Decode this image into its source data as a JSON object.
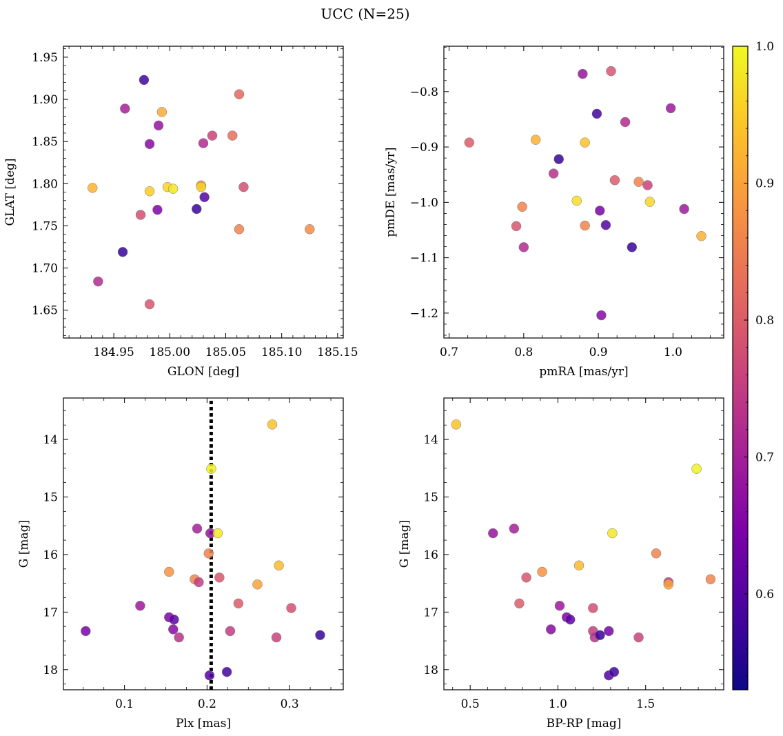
{
  "title": "UCC (N=25)",
  "colorbar": {
    "range": [
      0.53,
      1.0
    ],
    "ticks": [
      0.6,
      0.7,
      0.8,
      0.9,
      1.0
    ],
    "tick_labels": [
      "0.6",
      "0.7",
      "0.8",
      "0.9",
      "1.0"
    ],
    "colormap": "plasma"
  },
  "chart_data": [
    {
      "type": "scatter",
      "id": "glon-glat",
      "xlabel": "GLON [deg]",
      "ylabel": "GLAT [deg]",
      "xlim": [
        184.905,
        185.155
      ],
      "ylim": [
        1.617,
        1.963
      ],
      "xticks": [
        184.95,
        185.0,
        185.05,
        185.1,
        185.15
      ],
      "xtick_labels": [
        "184.95",
        "185.00",
        "185.05",
        "185.10",
        "185.15"
      ],
      "yticks": [
        1.65,
        1.7,
        1.75,
        1.8,
        1.85,
        1.9,
        1.95
      ],
      "ytick_labels": [
        "1.65",
        "1.70",
        "1.75",
        "1.80",
        "1.85",
        "1.90",
        "1.95"
      ],
      "points": [
        {
          "x": 184.977,
          "y": 1.923,
          "c": 0.58
        },
        {
          "x": 184.96,
          "y": 1.889,
          "c": 0.7
        },
        {
          "x": 184.993,
          "y": 1.885,
          "c": 0.91
        },
        {
          "x": 184.99,
          "y": 1.869,
          "c": 0.68
        },
        {
          "x": 184.982,
          "y": 1.847,
          "c": 0.66
        },
        {
          "x": 185.03,
          "y": 1.848,
          "c": 0.72
        },
        {
          "x": 185.038,
          "y": 1.857,
          "c": 0.76
        },
        {
          "x": 185.062,
          "y": 1.906,
          "c": 0.82
        },
        {
          "x": 185.056,
          "y": 1.857,
          "c": 0.83
        },
        {
          "x": 184.931,
          "y": 1.795,
          "c": 0.92
        },
        {
          "x": 184.982,
          "y": 1.791,
          "c": 0.95
        },
        {
          "x": 184.998,
          "y": 1.796,
          "c": 0.96
        },
        {
          "x": 185.003,
          "y": 1.794,
          "c": 0.98
        },
        {
          "x": 185.028,
          "y": 1.798,
          "c": 0.88
        },
        {
          "x": 185.028,
          "y": 1.796,
          "c": 0.96
        },
        {
          "x": 185.066,
          "y": 1.796,
          "c": 0.78
        },
        {
          "x": 184.974,
          "y": 1.763,
          "c": 0.78
        },
        {
          "x": 184.989,
          "y": 1.769,
          "c": 0.65
        },
        {
          "x": 185.024,
          "y": 1.77,
          "c": 0.57
        },
        {
          "x": 185.031,
          "y": 1.784,
          "c": 0.6
        },
        {
          "x": 185.062,
          "y": 1.746,
          "c": 0.86
        },
        {
          "x": 185.125,
          "y": 1.746,
          "c": 0.87
        },
        {
          "x": 184.958,
          "y": 1.719,
          "c": 0.57
        },
        {
          "x": 184.936,
          "y": 1.684,
          "c": 0.72
        },
        {
          "x": 184.982,
          "y": 1.657,
          "c": 0.79
        }
      ]
    },
    {
      "type": "scatter",
      "id": "pmra-pmde",
      "xlabel": "pmRA [mas/yr]",
      "ylabel": "pmDE [mas/yr]",
      "xlim": [
        0.693,
        1.068
      ],
      "ylim": [
        -1.245,
        -0.718
      ],
      "xticks": [
        0.7,
        0.8,
        0.9,
        1.0
      ],
      "xtick_labels": [
        "0.7",
        "0.8",
        "0.9",
        "1.0"
      ],
      "yticks": [
        -1.2,
        -1.1,
        -1.0,
        -0.9,
        -0.8
      ],
      "ytick_labels": [
        "−1.2",
        "−1.1",
        "−1.0",
        "−0.9",
        "−0.8"
      ],
      "points": [
        {
          "x": 0.879,
          "y": -0.768,
          "c": 0.68
        },
        {
          "x": 0.917,
          "y": -0.763,
          "c": 0.79
        },
        {
          "x": 0.898,
          "y": -0.84,
          "c": 0.58
        },
        {
          "x": 0.997,
          "y": -0.83,
          "c": 0.69
        },
        {
          "x": 0.936,
          "y": -0.855,
          "c": 0.72
        },
        {
          "x": 0.727,
          "y": -0.892,
          "c": 0.8
        },
        {
          "x": 0.816,
          "y": -0.887,
          "c": 0.92
        },
        {
          "x": 0.882,
          "y": -0.892,
          "c": 0.94
        },
        {
          "x": 0.847,
          "y": -0.922,
          "c": 0.57
        },
        {
          "x": 0.84,
          "y": -0.948,
          "c": 0.73
        },
        {
          "x": 0.922,
          "y": -0.96,
          "c": 0.8
        },
        {
          "x": 0.954,
          "y": -0.963,
          "c": 0.86
        },
        {
          "x": 0.966,
          "y": -0.969,
          "c": 0.76
        },
        {
          "x": 0.871,
          "y": -0.997,
          "c": 0.97
        },
        {
          "x": 0.969,
          "y": -0.999,
          "c": 0.96
        },
        {
          "x": 0.798,
          "y": -1.008,
          "c": 0.86
        },
        {
          "x": 0.902,
          "y": -1.015,
          "c": 0.64
        },
        {
          "x": 1.015,
          "y": -1.012,
          "c": 0.69
        },
        {
          "x": 0.79,
          "y": -1.043,
          "c": 0.79
        },
        {
          "x": 0.882,
          "y": -1.042,
          "c": 0.86
        },
        {
          "x": 0.91,
          "y": -1.041,
          "c": 0.6
        },
        {
          "x": 0.8,
          "y": -1.081,
          "c": 0.72
        },
        {
          "x": 0.945,
          "y": -1.081,
          "c": 0.57
        },
        {
          "x": 1.038,
          "y": -1.061,
          "c": 0.92
        },
        {
          "x": 0.904,
          "y": -1.204,
          "c": 0.66
        }
      ]
    },
    {
      "type": "scatter",
      "id": "plx-g",
      "xlabel": "Plx [mas]",
      "ylabel": "G [mag]",
      "xlim": [
        0.026,
        0.365
      ],
      "ylim": [
        18.35,
        13.28
      ],
      "y_inverted": true,
      "vline": 0.205,
      "xticks": [
        0.1,
        0.2,
        0.3
      ],
      "xtick_labels": [
        "0.1",
        "0.2",
        "0.3"
      ],
      "yticks": [
        14,
        15,
        16,
        17,
        18
      ],
      "ytick_labels": [
        "14",
        "15",
        "16",
        "17",
        "18"
      ],
      "points": [
        {
          "x": 0.279,
          "y": 13.74,
          "c": 0.94
        },
        {
          "x": 0.205,
          "y": 14.51,
          "c": 0.99
        },
        {
          "x": 0.188,
          "y": 15.55,
          "c": 0.7
        },
        {
          "x": 0.204,
          "y": 15.63,
          "c": 0.68
        },
        {
          "x": 0.213,
          "y": 15.63,
          "c": 0.98
        },
        {
          "x": 0.202,
          "y": 15.98,
          "c": 0.86
        },
        {
          "x": 0.287,
          "y": 16.19,
          "c": 0.93
        },
        {
          "x": 0.154,
          "y": 16.3,
          "c": 0.88
        },
        {
          "x": 0.185,
          "y": 16.43,
          "c": 0.86
        },
        {
          "x": 0.19,
          "y": 16.48,
          "c": 0.75
        },
        {
          "x": 0.215,
          "y": 16.4,
          "c": 0.79
        },
        {
          "x": 0.261,
          "y": 16.52,
          "c": 0.9
        },
        {
          "x": 0.119,
          "y": 16.89,
          "c": 0.69
        },
        {
          "x": 0.238,
          "y": 16.85,
          "c": 0.8
        },
        {
          "x": 0.302,
          "y": 16.93,
          "c": 0.78
        },
        {
          "x": 0.154,
          "y": 17.09,
          "c": 0.65
        },
        {
          "x": 0.16,
          "y": 17.13,
          "c": 0.61
        },
        {
          "x": 0.159,
          "y": 17.3,
          "c": 0.66
        },
        {
          "x": 0.053,
          "y": 17.33,
          "c": 0.64
        },
        {
          "x": 0.228,
          "y": 17.33,
          "c": 0.75
        },
        {
          "x": 0.166,
          "y": 17.44,
          "c": 0.73
        },
        {
          "x": 0.284,
          "y": 17.44,
          "c": 0.76
        },
        {
          "x": 0.337,
          "y": 17.4,
          "c": 0.57
        },
        {
          "x": 0.203,
          "y": 18.1,
          "c": 0.6
        },
        {
          "x": 0.224,
          "y": 18.04,
          "c": 0.58
        }
      ]
    },
    {
      "type": "scatter",
      "id": "bprp-g",
      "xlabel": "BP-RP [mag]",
      "ylabel": "G [mag]",
      "xlim": [
        0.35,
        1.945
      ],
      "ylim": [
        18.35,
        13.28
      ],
      "y_inverted": true,
      "xticks": [
        0.5,
        1.0,
        1.5
      ],
      "xtick_labels": [
        "0.5",
        "1.0",
        "1.5"
      ],
      "yticks": [
        14,
        15,
        16,
        17,
        18
      ],
      "ytick_labels": [
        "14",
        "15",
        "16",
        "17",
        "18"
      ],
      "points": [
        {
          "x": 0.42,
          "y": 13.74,
          "c": 0.94
        },
        {
          "x": 1.79,
          "y": 14.51,
          "c": 0.99
        },
        {
          "x": 0.63,
          "y": 15.63,
          "c": 0.68
        },
        {
          "x": 0.75,
          "y": 15.55,
          "c": 0.7
        },
        {
          "x": 1.31,
          "y": 15.63,
          "c": 0.98
        },
        {
          "x": 1.56,
          "y": 15.98,
          "c": 0.86
        },
        {
          "x": 1.12,
          "y": 16.19,
          "c": 0.93
        },
        {
          "x": 0.91,
          "y": 16.3,
          "c": 0.88
        },
        {
          "x": 0.82,
          "y": 16.4,
          "c": 0.79
        },
        {
          "x": 1.63,
          "y": 16.48,
          "c": 0.75
        },
        {
          "x": 1.63,
          "y": 16.52,
          "c": 0.9
        },
        {
          "x": 1.87,
          "y": 16.43,
          "c": 0.86
        },
        {
          "x": 0.78,
          "y": 16.85,
          "c": 0.8
        },
        {
          "x": 1.01,
          "y": 16.89,
          "c": 0.69
        },
        {
          "x": 1.2,
          "y": 16.93,
          "c": 0.78
        },
        {
          "x": 1.05,
          "y": 17.09,
          "c": 0.65
        },
        {
          "x": 1.07,
          "y": 17.13,
          "c": 0.61
        },
        {
          "x": 0.96,
          "y": 17.3,
          "c": 0.66
        },
        {
          "x": 1.2,
          "y": 17.33,
          "c": 0.75
        },
        {
          "x": 1.21,
          "y": 17.44,
          "c": 0.73
        },
        {
          "x": 1.24,
          "y": 17.4,
          "c": 0.57
        },
        {
          "x": 1.29,
          "y": 17.33,
          "c": 0.64
        },
        {
          "x": 1.46,
          "y": 17.44,
          "c": 0.76
        },
        {
          "x": 1.29,
          "y": 18.1,
          "c": 0.6
        },
        {
          "x": 1.32,
          "y": 18.04,
          "c": 0.58
        }
      ]
    }
  ]
}
